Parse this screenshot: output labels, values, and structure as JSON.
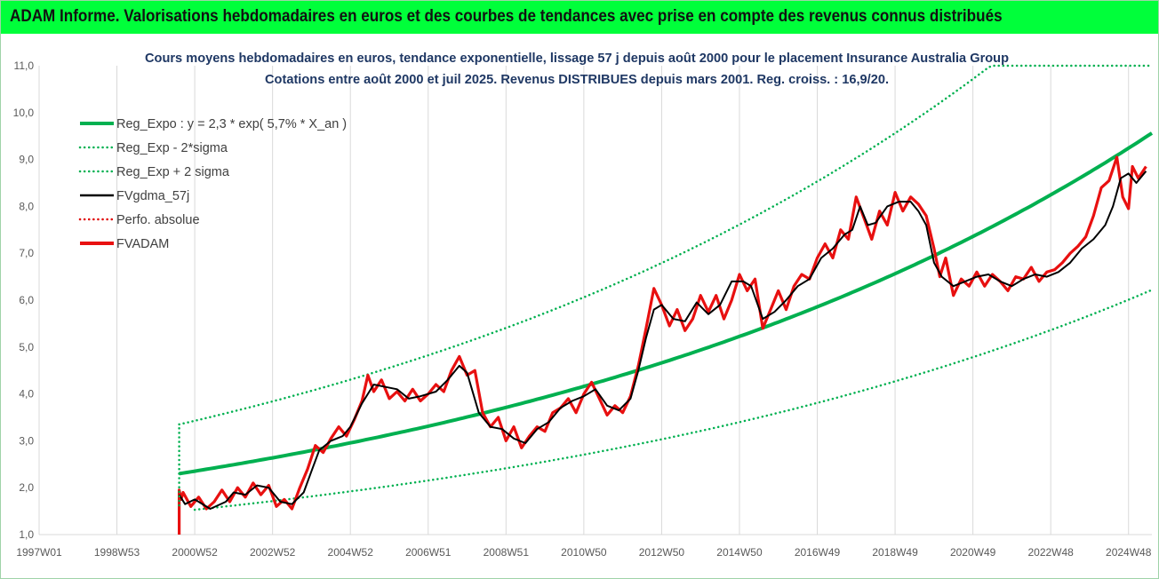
{
  "banner": {
    "text": "ADAM Informe. Valorisations hebdomadaires en euros et des courbes de tendances avec prise en compte des revenus connus distribués",
    "color": "#00ff3a"
  },
  "chart_data": {
    "type": "line",
    "title": [
      "Cours moyens hebdomadaires en euros, tendance exponentielle, lissage 57 j depuis août 2000 pour le placement Insurance Australia Group",
      "Cotations entre août 2000 et juil 2025. Revenus DISTRIBUES depuis mars 2001. Reg. croiss. : 16,9/20."
    ],
    "title_color": "#1f3864",
    "x_ticks": [
      "1997W01",
      "1998W53",
      "2000W52",
      "2002W52",
      "2004W52",
      "2006W51",
      "2008W51",
      "2010W50",
      "2012W50",
      "2014W50",
      "2016W49",
      "2018W49",
      "2020W49",
      "2022W48",
      "2024W48"
    ],
    "x_tick_years": [
      1997.0,
      1999.0,
      2001.0,
      2003.0,
      2005.0,
      2007.0,
      2009.0,
      2011.0,
      2013.0,
      2015.0,
      2017.0,
      2019.0,
      2021.0,
      2023.0,
      2025.0
    ],
    "xlim": [
      1997.0,
      2025.6
    ],
    "y_ticks": [
      "1,0",
      "2,0",
      "3,0",
      "4,0",
      "5,0",
      "6,0",
      "7,0",
      "8,0",
      "9,0",
      "10,0",
      "11,0"
    ],
    "ylim": [
      1.0,
      11.0
    ],
    "grid": "vertical",
    "legend_position": "top-left",
    "series": [
      {
        "name": "Reg_Expo : y = 2,3 * exp( 5,7% *  X_an )",
        "color": "#00b050",
        "style": "solid-thick",
        "model": {
          "a": 2.3,
          "r": 0.057,
          "x0": 2000.6,
          "x_end": 2025.6
        }
      },
      {
        "name": "Reg_Exp - 2*sigma",
        "color": "#00b050",
        "style": "dotted",
        "model": {
          "a": 1.53,
          "r": 0.057,
          "x0": 2001.0,
          "x_end": 2025.6
        }
      },
      {
        "name": "Reg_Exp + 2 sigma",
        "color": "#00b050",
        "style": "dotted",
        "model": {
          "a": 3.35,
          "r": 0.057,
          "x0": 2000.6,
          "x_end": 2025.6,
          "cap": 11.0
        }
      },
      {
        "name": "FVgdma_57j",
        "color": "#000000",
        "style": "solid",
        "x": [
          2000.6,
          2000.75,
          2001.0,
          2001.4,
          2001.8,
          2002.0,
          2002.3,
          2002.6,
          2002.9,
          2003.2,
          2003.5,
          2003.8,
          2004.0,
          2004.2,
          2004.5,
          2004.8,
          2005.0,
          2005.3,
          2005.6,
          2005.9,
          2006.2,
          2006.5,
          2006.8,
          2007.0,
          2007.2,
          2007.5,
          2007.8,
          2008.0,
          2008.3,
          2008.6,
          2008.9,
          2009.2,
          2009.5,
          2009.8,
          2010.1,
          2010.4,
          2010.7,
          2011.0,
          2011.3,
          2011.6,
          2011.9,
          2012.2,
          2012.4,
          2012.6,
          2012.8,
          2013.0,
          2013.3,
          2013.6,
          2013.9,
          2014.2,
          2014.5,
          2014.8,
          2015.1,
          2015.3,
          2015.6,
          2015.9,
          2016.2,
          2016.5,
          2016.8,
          2017.1,
          2017.4,
          2017.7,
          2017.9,
          2018.1,
          2018.3,
          2018.5,
          2018.8,
          2019.1,
          2019.4,
          2019.6,
          2019.8,
          2020.0,
          2020.2,
          2020.5,
          2020.8,
          2021.1,
          2021.4,
          2021.7,
          2022.0,
          2022.3,
          2022.6,
          2022.9,
          2023.2,
          2023.5,
          2023.8,
          2024.1,
          2024.4,
          2024.6,
          2024.8,
          2025.0,
          2025.2,
          2025.45
        ],
        "y": [
          1.85,
          1.65,
          1.75,
          1.55,
          1.7,
          1.9,
          1.85,
          2.05,
          2.0,
          1.7,
          1.65,
          1.9,
          2.35,
          2.8,
          3.0,
          3.1,
          3.3,
          3.8,
          4.2,
          4.15,
          4.1,
          3.9,
          3.95,
          4.0,
          4.05,
          4.3,
          4.6,
          4.45,
          3.6,
          3.3,
          3.25,
          3.05,
          2.95,
          3.25,
          3.4,
          3.7,
          3.85,
          3.95,
          4.1,
          3.75,
          3.65,
          3.9,
          4.5,
          5.2,
          5.8,
          5.9,
          5.6,
          5.55,
          5.95,
          5.7,
          5.9,
          6.4,
          6.4,
          6.3,
          5.6,
          5.75,
          6.0,
          6.3,
          6.45,
          6.9,
          7.1,
          7.4,
          7.5,
          8.0,
          7.6,
          7.65,
          8.0,
          8.1,
          8.1,
          7.9,
          7.6,
          6.8,
          6.5,
          6.3,
          6.4,
          6.5,
          6.55,
          6.4,
          6.3,
          6.45,
          6.55,
          6.5,
          6.6,
          6.8,
          7.1,
          7.3,
          7.6,
          8.0,
          8.6,
          8.7,
          8.5,
          8.75
        ]
      },
      {
        "name": "Perfo. absolue",
        "color": "#e00000",
        "style": "dotted"
      },
      {
        "name": "FVADAM",
        "color": "#e81010",
        "style": "solid-thick",
        "x": [
          2000.6,
          2000.6,
          2000.65,
          2000.7,
          2000.9,
          2001.1,
          2001.3,
          2001.5,
          2001.7,
          2001.9,
          2002.1,
          2002.3,
          2002.5,
          2002.7,
          2002.9,
          2003.1,
          2003.3,
          2003.5,
          2003.7,
          2003.9,
          2004.1,
          2004.3,
          2004.5,
          2004.7,
          2004.9,
          2005.1,
          2005.3,
          2005.45,
          2005.6,
          2005.8,
          2006.0,
          2006.2,
          2006.4,
          2006.6,
          2006.8,
          2007.0,
          2007.2,
          2007.4,
          2007.6,
          2007.8,
          2008.0,
          2008.2,
          2008.4,
          2008.6,
          2008.8,
          2009.0,
          2009.2,
          2009.4,
          2009.6,
          2009.8,
          2010.0,
          2010.2,
          2010.4,
          2010.6,
          2010.8,
          2011.0,
          2011.2,
          2011.4,
          2011.6,
          2011.8,
          2012.0,
          2012.2,
          2012.4,
          2012.6,
          2012.8,
          2013.0,
          2013.2,
          2013.4,
          2013.6,
          2013.8,
          2014.0,
          2014.2,
          2014.4,
          2014.6,
          2014.8,
          2015.0,
          2015.2,
          2015.4,
          2015.6,
          2015.8,
          2016.0,
          2016.2,
          2016.4,
          2016.6,
          2016.8,
          2017.0,
          2017.2,
          2017.4,
          2017.6,
          2017.8,
          2018.0,
          2018.2,
          2018.4,
          2018.6,
          2018.8,
          2019.0,
          2019.2,
          2019.4,
          2019.6,
          2019.8,
          2020.0,
          2020.15,
          2020.3,
          2020.5,
          2020.7,
          2020.9,
          2021.1,
          2021.3,
          2021.5,
          2021.7,
          2021.9,
          2022.1,
          2022.3,
          2022.5,
          2022.7,
          2022.9,
          2023.1,
          2023.3,
          2023.5,
          2023.7,
          2023.9,
          2024.1,
          2024.3,
          2024.5,
          2024.7,
          2024.85,
          2025.0,
          2025.1,
          2025.25,
          2025.45
        ],
        "y": [
          1.0,
          1.95,
          1.75,
          1.9,
          1.6,
          1.8,
          1.55,
          1.7,
          1.95,
          1.7,
          2.0,
          1.8,
          2.1,
          1.85,
          2.05,
          1.6,
          1.75,
          1.55,
          2.0,
          2.4,
          2.9,
          2.75,
          3.05,
          3.3,
          3.1,
          3.45,
          3.85,
          4.4,
          4.05,
          4.3,
          3.9,
          4.05,
          3.85,
          4.1,
          3.85,
          4.0,
          4.2,
          4.05,
          4.5,
          4.8,
          4.4,
          4.5,
          3.6,
          3.3,
          3.5,
          3.0,
          3.3,
          2.85,
          3.1,
          3.3,
          3.2,
          3.6,
          3.7,
          3.9,
          3.6,
          4.0,
          4.25,
          3.9,
          3.55,
          3.75,
          3.6,
          3.95,
          4.6,
          5.4,
          6.25,
          5.9,
          5.45,
          5.8,
          5.35,
          5.6,
          6.1,
          5.75,
          6.1,
          5.6,
          6.0,
          6.55,
          6.2,
          6.45,
          5.4,
          5.8,
          6.2,
          5.8,
          6.3,
          6.55,
          6.45,
          6.9,
          7.2,
          6.9,
          7.5,
          7.3,
          8.2,
          7.75,
          7.3,
          7.9,
          7.6,
          8.3,
          7.9,
          8.2,
          8.05,
          7.8,
          7.1,
          6.5,
          6.9,
          6.1,
          6.45,
          6.3,
          6.6,
          6.3,
          6.55,
          6.4,
          6.2,
          6.5,
          6.45,
          6.7,
          6.4,
          6.6,
          6.65,
          6.8,
          7.0,
          7.15,
          7.35,
          7.8,
          8.4,
          8.55,
          9.05,
          8.2,
          7.95,
          8.85,
          8.6,
          8.85
        ]
      }
    ]
  }
}
